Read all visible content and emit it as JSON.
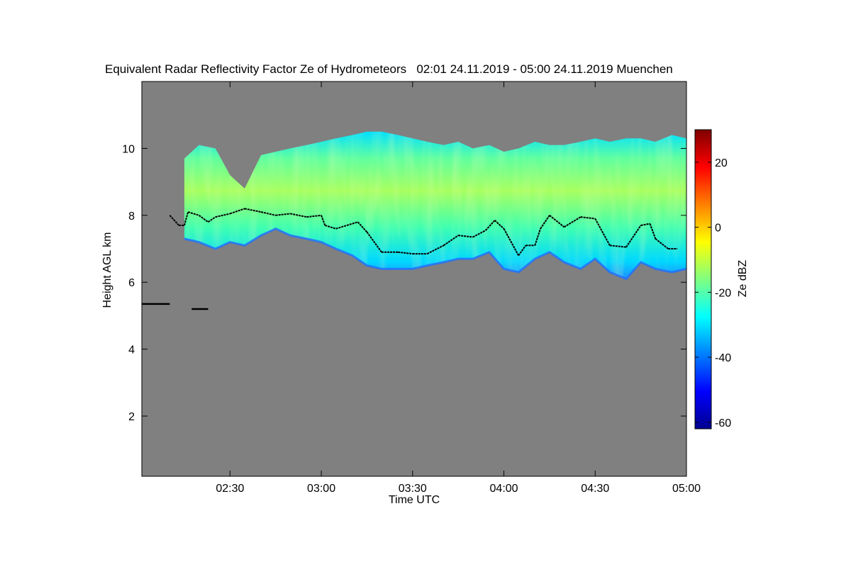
{
  "title": "Equivalent Radar Reflectivity Factor Ze of Hydrometeors   02:01 24.11.2019 - 05:00 24.11.2019 Muenchen",
  "colors": {
    "background": "#808080",
    "colormap": [
      "#00008f",
      "#0000ff",
      "#0080ff",
      "#00ffff",
      "#80ff80",
      "#ffff00",
      "#ff8000",
      "#ff0000",
      "#800000"
    ],
    "melting_layer": "#000000"
  },
  "chart_data": {
    "type": "heatmap",
    "title": "Equivalent Radar Reflectivity Factor Ze of Hydrometeors   02:01 24.11.2019 - 05:00 24.11.2019 Muenchen",
    "xlabel": "Time UTC",
    "ylabel": "Height AGL km",
    "colorbar_label": "Ze dBZ",
    "x_ticks": [
      "02:30",
      "03:00",
      "03:30",
      "04:00",
      "04:30",
      "05:00"
    ],
    "y_ticks": [
      "2",
      "4",
      "6",
      "8",
      "10"
    ],
    "colorbar_ticks": [
      "-60",
      "-40",
      "-20",
      "0",
      "20"
    ],
    "colorbar_range": [
      -62,
      30
    ],
    "xlim_hours": [
      2.017,
      5.0
    ],
    "ylim_km": [
      0.2,
      12.0
    ],
    "cloud_layer": {
      "times_hours": [
        2.25,
        2.33,
        2.42,
        2.5,
        2.58,
        2.67,
        2.75,
        2.83,
        2.92,
        3.0,
        3.08,
        3.17,
        3.25,
        3.33,
        3.42,
        3.5,
        3.58,
        3.67,
        3.75,
        3.83,
        3.92,
        4.0,
        4.08,
        4.17,
        4.25,
        4.33,
        4.42,
        4.5,
        4.58,
        4.67,
        4.75,
        4.83,
        4.92,
        5.0
      ],
      "top_km": [
        9.7,
        10.1,
        10.0,
        9.2,
        8.8,
        9.8,
        9.9,
        10.0,
        10.1,
        10.2,
        10.3,
        10.4,
        10.5,
        10.5,
        10.4,
        10.3,
        10.2,
        10.1,
        10.2,
        10.0,
        10.1,
        9.9,
        10.0,
        10.2,
        10.1,
        10.1,
        10.2,
        10.3,
        10.2,
        10.3,
        10.3,
        10.2,
        10.4,
        10.3
      ],
      "base_km": [
        7.3,
        7.2,
        7.0,
        7.2,
        7.1,
        7.4,
        7.6,
        7.4,
        7.3,
        7.2,
        7.0,
        6.8,
        6.5,
        6.4,
        6.4,
        6.4,
        6.5,
        6.6,
        6.7,
        6.7,
        6.9,
        6.4,
        6.3,
        6.7,
        6.9,
        6.6,
        6.4,
        6.7,
        6.3,
        6.1,
        6.6,
        6.4,
        6.3,
        6.4
      ],
      "max_ze_dbz": -10
    },
    "melting_layer_km": {
      "times_hours": [
        2.17,
        2.22,
        2.25,
        2.27,
        2.33,
        2.38,
        2.42,
        2.5,
        2.58,
        2.67,
        2.75,
        2.83,
        2.92,
        3.0,
        3.02,
        3.08,
        3.17,
        3.2,
        3.25,
        3.33,
        3.42,
        3.5,
        3.58,
        3.67,
        3.75,
        3.83,
        3.9,
        3.95,
        4.0,
        4.08,
        4.12,
        4.17,
        4.2,
        4.25,
        4.33,
        4.42,
        4.5,
        4.58,
        4.67,
        4.75,
        4.8,
        4.83,
        4.9,
        4.95
      ],
      "height_km": [
        8.0,
        7.7,
        7.7,
        8.1,
        8.0,
        7.8,
        7.95,
        8.05,
        8.2,
        8.1,
        8.0,
        8.05,
        7.95,
        8.0,
        7.7,
        7.6,
        7.75,
        7.8,
        7.5,
        6.9,
        6.9,
        6.85,
        6.85,
        7.1,
        7.4,
        7.35,
        7.55,
        7.85,
        7.6,
        6.8,
        7.1,
        7.1,
        7.6,
        8.0,
        7.65,
        7.95,
        7.9,
        7.1,
        7.05,
        7.7,
        7.75,
        7.3,
        7.0,
        7.0
      ]
    },
    "low_echo_segments_km": [
      {
        "t_start": 2.017,
        "t_end": 2.17,
        "height": 5.35
      },
      {
        "t_start": 2.29,
        "t_end": 2.38,
        "height": 5.2
      }
    ]
  }
}
